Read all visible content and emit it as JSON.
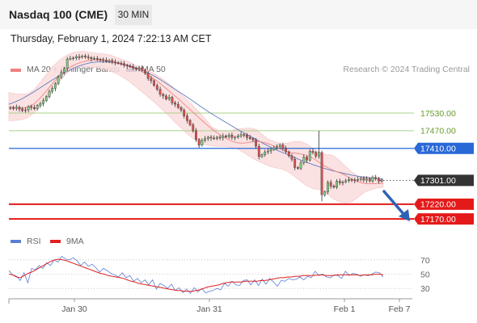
{
  "header": {
    "title": "Nasdaq 100 (CME)",
    "timeframe": "30 MIN"
  },
  "timestamp": "Thursday, February 1, 2024 7:22:13 AM CET",
  "legend": {
    "ma_bb": "MA 20 + Bollinger Bands",
    "ma50": "MA 50",
    "credit": "Research © 2024 Trading Central",
    "ma_bb_color": "#f08080",
    "ma50_color": "#1f4e9c"
  },
  "rsi_legend": {
    "rsi": "RSI",
    "ma9": "9MA",
    "rsi_color": "#5b7fd6",
    "ma9_color": "#e02020"
  },
  "chart_data": [
    {
      "type": "candlestick",
      "title": "Nasdaq 100 (CME)",
      "ylim": [
        17140,
        17640
      ],
      "x_ticks": [
        "Jan 30",
        "Jan 31",
        "Feb 1",
        "Feb 7"
      ],
      "levels": [
        {
          "value": 17530,
          "label": "17530.00",
          "color": "#9ac46a",
          "style": "green"
        },
        {
          "value": 17470,
          "label": "17470.00",
          "color": "#9ac46a",
          "style": "green"
        },
        {
          "value": 17410,
          "label": "17410.00",
          "color": "#2a68d8",
          "style": "blue"
        },
        {
          "value": 17301,
          "label": "17301.00",
          "color": "#333333",
          "style": "current"
        },
        {
          "value": 17220,
          "label": "17220.00",
          "color": "#e41a1a",
          "style": "red"
        },
        {
          "value": 17170,
          "label": "17170.00",
          "color": "#e41a1a",
          "style": "red"
        }
      ],
      "close": [
        17548,
        17546,
        17550,
        17544,
        17538,
        17541,
        17552,
        17549,
        17545,
        17556,
        17562,
        17572,
        17586,
        17604,
        17614,
        17630,
        17652,
        17668,
        17682,
        17714,
        17716,
        17718,
        17722,
        17720,
        17724,
        17721,
        17719,
        17715,
        17716,
        17713,
        17712,
        17710,
        17706,
        17709,
        17704,
        17702,
        17700,
        17698,
        17693,
        17690,
        17688,
        17683,
        17682,
        17684,
        17676,
        17666,
        17648,
        17640,
        17624,
        17611,
        17594,
        17588,
        17578,
        17584,
        17565,
        17560,
        17549,
        17540,
        17520,
        17505,
        17490,
        17470,
        17440,
        17421,
        17437,
        17443,
        17448,
        17445,
        17444,
        17448,
        17446,
        17452,
        17449,
        17455,
        17447,
        17448,
        17452,
        17457,
        17455,
        17447,
        17443,
        17438,
        17417,
        17382,
        17388,
        17398,
        17401,
        17406,
        17412,
        17415,
        17422,
        17410,
        17398,
        17385,
        17373,
        17345,
        17342,
        17361,
        17380,
        17370,
        17400,
        17396,
        17384,
        17396,
        17252,
        17262,
        17294,
        17282,
        17278,
        17298,
        17293,
        17296,
        17300,
        17304,
        17303,
        17301,
        17304,
        17308,
        17302,
        17306,
        17299,
        17311,
        17308,
        17299,
        17301
      ],
      "ma20": [
        17552,
        17550,
        17548,
        17547,
        17549,
        17553,
        17562,
        17575,
        17590,
        17607,
        17624,
        17641,
        17657,
        17670,
        17681,
        17690,
        17697,
        17702,
        17706,
        17709,
        17711,
        17711,
        17710,
        17708,
        17705,
        17702,
        17699,
        17695,
        17691,
        17686,
        17681,
        17675,
        17668,
        17660,
        17651,
        17641,
        17630,
        17618,
        17606,
        17594,
        17582,
        17569,
        17556,
        17543,
        17530,
        17517,
        17504,
        17491,
        17479,
        17468,
        17458,
        17449,
        17441,
        17434,
        17430,
        17428,
        17428,
        17430,
        17432,
        17433,
        17432,
        17429,
        17424,
        17418,
        17411,
        17405,
        17400,
        17396,
        17394,
        17392,
        17389,
        17385,
        17379,
        17370,
        17360,
        17351,
        17343,
        17336,
        17330,
        17325,
        17318,
        17310,
        17302,
        17296,
        17292,
        17290,
        17290,
        17290,
        17291,
        17291
      ],
      "ma50": [
        17560,
        17568,
        17578,
        17590,
        17603,
        17617,
        17631,
        17645,
        17658,
        17670,
        17681,
        17690,
        17697,
        17702,
        17704,
        17704,
        17703,
        17700,
        17696,
        17691,
        17684,
        17676,
        17666,
        17655,
        17642,
        17628,
        17614,
        17600,
        17586,
        17571,
        17556,
        17541,
        17527,
        17514,
        17501,
        17488,
        17475,
        17463,
        17451,
        17440,
        17428,
        17417,
        17406,
        17397,
        17388,
        17379,
        17370,
        17362,
        17354,
        17347,
        17340,
        17334,
        17329,
        17324,
        17319,
        17315,
        17312,
        17309,
        17307,
        17305
      ],
      "bb_upper": [
        17600,
        17596,
        17594,
        17596,
        17610,
        17636,
        17664,
        17690,
        17710,
        17726,
        17735,
        17739,
        17740,
        17736,
        17733,
        17731,
        17727,
        17719,
        17711,
        17704,
        17693,
        17683,
        17674,
        17663,
        17650,
        17633,
        17615,
        17596,
        17577,
        17556,
        17532,
        17508,
        17483,
        17470,
        17468,
        17470,
        17476,
        17478,
        17479,
        17474,
        17456,
        17440,
        17432,
        17426,
        17428,
        17434,
        17433,
        17424,
        17409,
        17394,
        17389,
        17387,
        17371,
        17350,
        17330,
        17317,
        17313,
        17313,
        17309,
        17303
      ],
      "bb_lower": [
        17504,
        17505,
        17507,
        17515,
        17532,
        17555,
        17582,
        17611,
        17639,
        17662,
        17681,
        17688,
        17688,
        17686,
        17684,
        17680,
        17673,
        17664,
        17652,
        17637,
        17620,
        17602,
        17584,
        17566,
        17546,
        17525,
        17503,
        17482,
        17462,
        17444,
        17430,
        17422,
        17418,
        17416,
        17416,
        17414,
        17409,
        17396,
        17382,
        17369,
        17360,
        17350,
        17344,
        17340,
        17330,
        17315,
        17298,
        17282,
        17273,
        17270,
        17258,
        17240,
        17229,
        17225,
        17228,
        17243,
        17260,
        17269,
        17275,
        17278
      ]
    },
    {
      "type": "line",
      "title": "RSI",
      "ylim": [
        20,
        80
      ],
      "y_ticks": [
        70,
        50,
        30
      ],
      "series": [
        {
          "name": "RSI",
          "color": "#5b7fd6",
          "values": [
            55,
            49,
            47,
            41,
            52,
            38,
            58,
            56,
            62,
            58,
            66,
            62,
            70,
            67,
            75,
            71,
            70,
            73,
            69,
            62,
            67,
            61,
            64,
            59,
            53,
            58,
            55,
            51,
            49,
            46,
            52,
            45,
            48,
            40,
            44,
            38,
            42,
            35,
            42,
            29,
            37,
            34,
            30,
            36,
            27,
            31,
            24,
            29,
            23,
            31,
            25,
            30,
            24,
            26,
            27,
            30,
            28,
            37,
            33,
            40,
            35,
            34,
            41,
            42,
            35,
            42,
            34,
            43,
            36,
            44,
            39,
            33,
            41,
            40,
            44,
            42,
            43,
            46,
            42,
            47,
            45,
            54,
            48,
            50,
            46,
            45,
            49,
            48,
            44,
            54,
            48,
            51,
            50,
            47,
            49,
            48,
            50,
            53,
            52,
            46
          ]
        },
        {
          "name": "9MA",
          "color": "#e02020",
          "values": [
            50,
            49,
            46,
            45,
            48,
            51,
            53,
            56,
            59,
            62,
            65,
            68,
            70,
            71,
            70,
            69,
            67,
            65,
            63,
            61,
            59,
            57,
            55,
            53,
            51,
            50,
            48,
            47,
            46,
            45,
            44,
            42,
            40,
            39,
            37,
            36,
            35,
            34,
            33,
            32,
            31,
            30,
            29,
            28,
            27,
            27,
            26,
            26,
            26,
            27,
            28,
            30,
            32,
            33,
            34,
            35,
            37,
            38,
            39,
            39,
            39,
            39,
            40,
            40,
            40,
            40,
            41,
            41,
            42,
            43,
            44,
            45,
            45,
            46,
            46,
            47,
            47,
            48,
            48,
            48,
            48,
            49,
            49,
            48,
            48,
            48,
            49,
            49,
            49,
            49,
            49,
            49,
            48,
            49,
            49,
            49,
            50,
            50,
            49
          ]
        }
      ]
    }
  ]
}
